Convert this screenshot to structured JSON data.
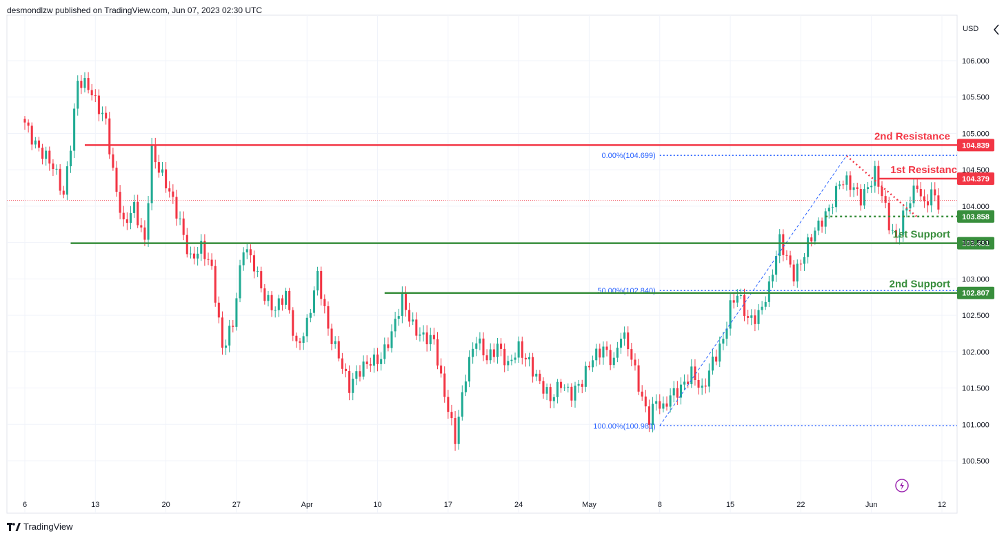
{
  "publisher": "desmondlzw published on TradingView.com, Jun 07, 2023 02:30 UTC",
  "brand": "TradingView",
  "currency_label": "USD",
  "colors": {
    "up": "#22ab94",
    "down": "#f23645",
    "resistance": "#f23645",
    "support": "#388e3c",
    "fib": "#2962ff",
    "grid": "#f0f3fa",
    "text": "#131722",
    "axis_text": "#131722",
    "fib_text": "#2962ff",
    "current_price_line": "#f23645",
    "alert_icon": "#9c27b0"
  },
  "chart_data": {
    "type": "candlestick",
    "title": "",
    "xlabel": "",
    "ylabel": "USD",
    "ylim": [
      100.2,
      106.6
    ],
    "y_ticks": [
      "106.000",
      "105.500",
      "105.000",
      "104.500",
      "104.000",
      "103.500",
      "103.000",
      "102.500",
      "102.000",
      "101.500",
      "101.000",
      "100.500"
    ],
    "y_tick_values": [
      106.0,
      105.5,
      105.0,
      104.5,
      104.0,
      103.5,
      103.0,
      102.5,
      102.0,
      101.5,
      101.0,
      100.5
    ],
    "x_ticks": [
      "6",
      "13",
      "20",
      "27",
      "Apr",
      "10",
      "17",
      "24",
      "May",
      "8",
      "15",
      "22",
      "Jun",
      "12"
    ],
    "x_tick_index": [
      0,
      20,
      40,
      60,
      80,
      100,
      120,
      140,
      160,
      180,
      200,
      220,
      240,
      260
    ],
    "price_anchors": [
      [
        0,
        105.15
      ],
      [
        3,
        104.9
      ],
      [
        8,
        104.5
      ],
      [
        11,
        104.15
      ],
      [
        13,
        104.9
      ],
      [
        15,
        105.75
      ],
      [
        18,
        105.6
      ],
      [
        20,
        105.4
      ],
      [
        23,
        105.2
      ],
      [
        25,
        104.5
      ],
      [
        28,
        103.7
      ],
      [
        31,
        103.95
      ],
      [
        34,
        103.55
      ],
      [
        36,
        104.8
      ],
      [
        38,
        104.5
      ],
      [
        41,
        104.15
      ],
      [
        44,
        103.8
      ],
      [
        47,
        103.3
      ],
      [
        50,
        103.4
      ],
      [
        53,
        103.1
      ],
      [
        56,
        102.1
      ],
      [
        59,
        102.4
      ],
      [
        62,
        103.4
      ],
      [
        65,
        103.2
      ],
      [
        68,
        102.8
      ],
      [
        71,
        102.55
      ],
      [
        74,
        102.75
      ],
      [
        77,
        102.1
      ],
      [
        80,
        102.4
      ],
      [
        83,
        103.0
      ],
      [
        86,
        102.3
      ],
      [
        89,
        102.0
      ],
      [
        92,
        101.5
      ],
      [
        95,
        101.7
      ],
      [
        98,
        101.9
      ],
      [
        101,
        101.95
      ],
      [
        104,
        102.2
      ],
      [
        107,
        102.7
      ],
      [
        110,
        102.4
      ],
      [
        113,
        102.2
      ],
      [
        116,
        102.1
      ],
      [
        118,
        101.6
      ],
      [
        120,
        101.25
      ],
      [
        122,
        100.85
      ],
      [
        125,
        101.65
      ],
      [
        128,
        102.15
      ],
      [
        131,
        101.95
      ],
      [
        134,
        102.1
      ],
      [
        137,
        101.75
      ],
      [
        140,
        102.05
      ],
      [
        143,
        101.9
      ],
      [
        146,
        101.55
      ],
      [
        149,
        101.3
      ],
      [
        152,
        101.6
      ],
      [
        155,
        101.45
      ],
      [
        158,
        101.55
      ],
      [
        161,
        101.9
      ],
      [
        164,
        102.1
      ],
      [
        167,
        101.85
      ],
      [
        169,
        102.2
      ],
      [
        171,
        102.05
      ],
      [
        173,
        101.75
      ],
      [
        175,
        101.4
      ],
      [
        177,
        101.1
      ],
      [
        179,
        101.3
      ],
      [
        181,
        101.15
      ],
      [
        183,
        101.4
      ],
      [
        186,
        101.55
      ],
      [
        189,
        101.7
      ],
      [
        192,
        101.4
      ],
      [
        195,
        101.9
      ],
      [
        198,
        102.2
      ],
      [
        200,
        102.6
      ],
      [
        202,
        102.75
      ],
      [
        205,
        102.45
      ],
      [
        208,
        102.55
      ],
      [
        211,
        102.85
      ],
      [
        214,
        103.5
      ],
      [
        216,
        103.3
      ],
      [
        218,
        103.1
      ],
      [
        220,
        103.25
      ],
      [
        222,
        103.45
      ],
      [
        225,
        103.7
      ],
      [
        228,
        104.0
      ],
      [
        231,
        104.35
      ],
      [
        233,
        104.3
      ],
      [
        235,
        104.2
      ],
      [
        237,
        104.1
      ],
      [
        239,
        104.3
      ],
      [
        241,
        104.5
      ],
      [
        243,
        104.15
      ],
      [
        245,
        103.7
      ],
      [
        247,
        103.5
      ],
      [
        249,
        103.9
      ],
      [
        251,
        104.15
      ],
      [
        253,
        104.3
      ],
      [
        255,
        103.95
      ],
      [
        257,
        104.15
      ],
      [
        259,
        104.05
      ]
    ],
    "bars_visible": 260,
    "last_price": 104.08,
    "levels": [
      {
        "label": "2nd Resistance",
        "value": 104.839,
        "value_label": "104.839",
        "kind": "resistance",
        "style": "solid"
      },
      {
        "label": "1st Resistanc",
        "value": 104.379,
        "value_label": "104.379",
        "kind": "resistance",
        "style": "solid"
      },
      {
        "label": "",
        "value": 103.858,
        "value_label": "103.858",
        "kind": "support",
        "style": "dotted"
      },
      {
        "label": "1st Support",
        "value": 103.491,
        "value_label": "103.491",
        "kind": "support",
        "style": "solid"
      },
      {
        "label": "2nd Support",
        "value": 102.807,
        "value_label": "102.807",
        "kind": "support",
        "style": "solid"
      }
    ],
    "fib_levels": [
      {
        "label": "0.00%(104.699)",
        "value": 104.699
      },
      {
        "label": "50.00%(102.840)",
        "value": 102.84
      },
      {
        "label": "100.00%(100.981)",
        "value": 100.981
      }
    ],
    "fib_anchor_bars": [
      180,
      233
    ]
  }
}
